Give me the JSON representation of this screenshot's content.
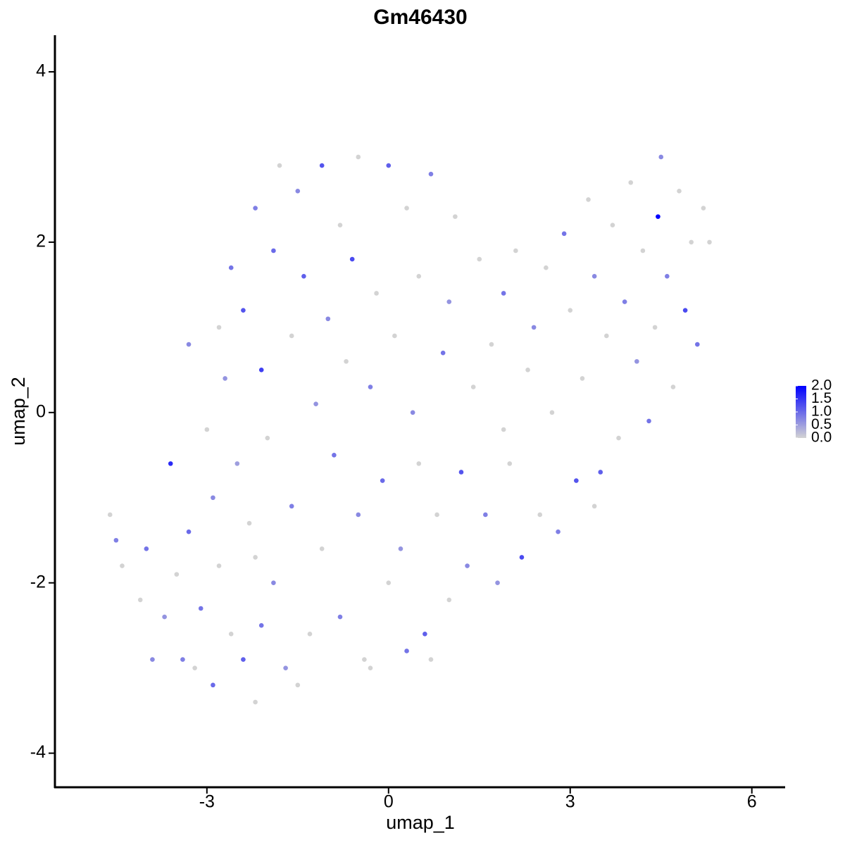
{
  "chart_data": {
    "type": "scatter",
    "title": "Gm46430",
    "x_label": "umap_1",
    "y_label": "umap_2",
    "x": [
      -4.6,
      -4.5,
      -4.4,
      -4.1,
      -4.0,
      -3.9,
      -3.7,
      -3.6,
      -3.5,
      -3.4,
      -3.3,
      -3.2,
      -3.1,
      -3.0,
      -2.9,
      -2.9,
      -2.8,
      -2.7,
      -2.6,
      -2.6,
      -2.5,
      -2.4,
      -2.4,
      -2.3,
      -2.2,
      -2.2,
      -2.1,
      -2.1,
      -2.0,
      -1.9,
      -1.9,
      -1.8,
      -1.7,
      -1.6,
      -1.6,
      -1.5,
      -1.4,
      -1.3,
      -1.2,
      -1.1,
      -1.1,
      -1.0,
      -0.9,
      -0.8,
      -0.8,
      -0.7,
      -0.6,
      -0.5,
      -0.5,
      -0.4,
      -0.3,
      -0.2,
      -0.1,
      0.0,
      0.0,
      0.1,
      0.2,
      0.3,
      0.3,
      0.4,
      0.5,
      0.5,
      0.6,
      0.7,
      0.8,
      0.9,
      1.0,
      1.0,
      1.1,
      1.2,
      1.3,
      1.4,
      1.5,
      1.6,
      1.7,
      1.8,
      1.9,
      2.0,
      2.1,
      2.2,
      2.3,
      2.4,
      2.5,
      2.6,
      2.7,
      2.8,
      2.9,
      3.0,
      3.1,
      3.2,
      3.3,
      3.4,
      3.5,
      3.6,
      3.7,
      3.8,
      3.9,
      4.0,
      4.1,
      4.2,
      4.3,
      4.4,
      4.45,
      4.5,
      4.6,
      4.7,
      4.8,
      4.9,
      5.0,
      5.1,
      5.2,
      5.3,
      -2.8,
      -3.3,
      -0.3,
      0.7,
      -1.5,
      -2.2,
      1.9,
      3.4
    ],
    "y": [
      -1.2,
      -1.5,
      -1.8,
      -2.2,
      -1.6,
      -2.9,
      -2.4,
      -0.6,
      -1.9,
      -2.9,
      -1.4,
      -3.0,
      -2.3,
      -0.2,
      -1.0,
      -3.2,
      -1.8,
      0.4,
      -2.6,
      1.7,
      -0.6,
      -2.9,
      1.2,
      -1.3,
      -3.4,
      2.4,
      0.5,
      -2.5,
      -0.3,
      1.9,
      -2.0,
      2.9,
      -3.0,
      0.9,
      -1.1,
      2.6,
      1.6,
      -2.6,
      0.1,
      2.9,
      -1.6,
      1.1,
      -0.5,
      2.2,
      -2.4,
      0.6,
      1.8,
      -1.2,
      3.0,
      -2.9,
      0.3,
      1.4,
      -0.8,
      2.9,
      -2.0,
      0.9,
      -1.6,
      -2.8,
      2.4,
      0.0,
      1.6,
      -0.6,
      -2.6,
      2.8,
      -1.2,
      0.7,
      -2.2,
      1.3,
      2.3,
      -0.7,
      -1.8,
      0.3,
      1.8,
      -1.2,
      0.8,
      -2.0,
      1.4,
      -0.6,
      1.9,
      -1.7,
      0.5,
      1.0,
      -1.2,
      1.7,
      0.0,
      -1.4,
      2.1,
      1.2,
      -0.8,
      0.4,
      2.5,
      1.6,
      -0.7,
      0.9,
      2.2,
      -0.3,
      1.3,
      2.7,
      0.6,
      1.9,
      -0.1,
      1.0,
      2.3,
      3.0,
      1.6,
      0.3,
      2.6,
      1.2,
      2.0,
      0.8,
      2.4,
      2.0,
      1.0,
      0.8,
      -3.0,
      -2.9,
      -3.2,
      -1.7,
      -0.2,
      -1.1
    ],
    "values": [
      0,
      0.8,
      0,
      0,
      0.9,
      0.7,
      0.6,
      1.6,
      0,
      0.8,
      1.0,
      0,
      0.9,
      0,
      0.7,
      1.0,
      0,
      0.6,
      0,
      0.9,
      0.5,
      1.1,
      1.2,
      0,
      0,
      0.8,
      1.4,
      0.9,
      0,
      1.0,
      0.7,
      0,
      0.6,
      0,
      0.8,
      0.7,
      1.1,
      0,
      0.6,
      1.2,
      0,
      0.7,
      0.9,
      0,
      0.8,
      0,
      1.3,
      0.7,
      0,
      0,
      0.8,
      0,
      1.0,
      1.1,
      0,
      0,
      0.6,
      0.9,
      0,
      0.7,
      0,
      0,
      1.1,
      0.8,
      0,
      0.9,
      0,
      0.6,
      0,
      1.2,
      0.7,
      0,
      0,
      0.8,
      0,
      0.6,
      0.9,
      0,
      0,
      1.3,
      0,
      0.7,
      0,
      0,
      0,
      0.8,
      0.9,
      0,
      1.2,
      0,
      0,
      0.7,
      1.1,
      0,
      0,
      0,
      0.8,
      0,
      0.6,
      0,
      0.9,
      0,
      2.0,
      0.7,
      0.8,
      0,
      0,
      1.3,
      0,
      0.9,
      0,
      0,
      0,
      0.7,
      0,
      0,
      0,
      0,
      0,
      0
    ],
    "xlim": [
      -5.51,
      6.55
    ],
    "ylim": [
      -4.4,
      4.43
    ],
    "xticks": [
      -3,
      0,
      3,
      6
    ],
    "yticks": [
      -4,
      -2,
      0,
      2,
      4
    ],
    "color_low": "#d3d3d3",
    "color_high": "#0000ff",
    "colorbar": {
      "lim": [
        0,
        2
      ],
      "ticks": [
        {
          "value": 0,
          "label": "0.0"
        },
        {
          "value": 0.5,
          "label": "0.5"
        },
        {
          "value": 1,
          "label": "1.0"
        },
        {
          "value": 1.5,
          "label": "1.5"
        },
        {
          "value": 2,
          "label": "2.0"
        }
      ]
    }
  }
}
